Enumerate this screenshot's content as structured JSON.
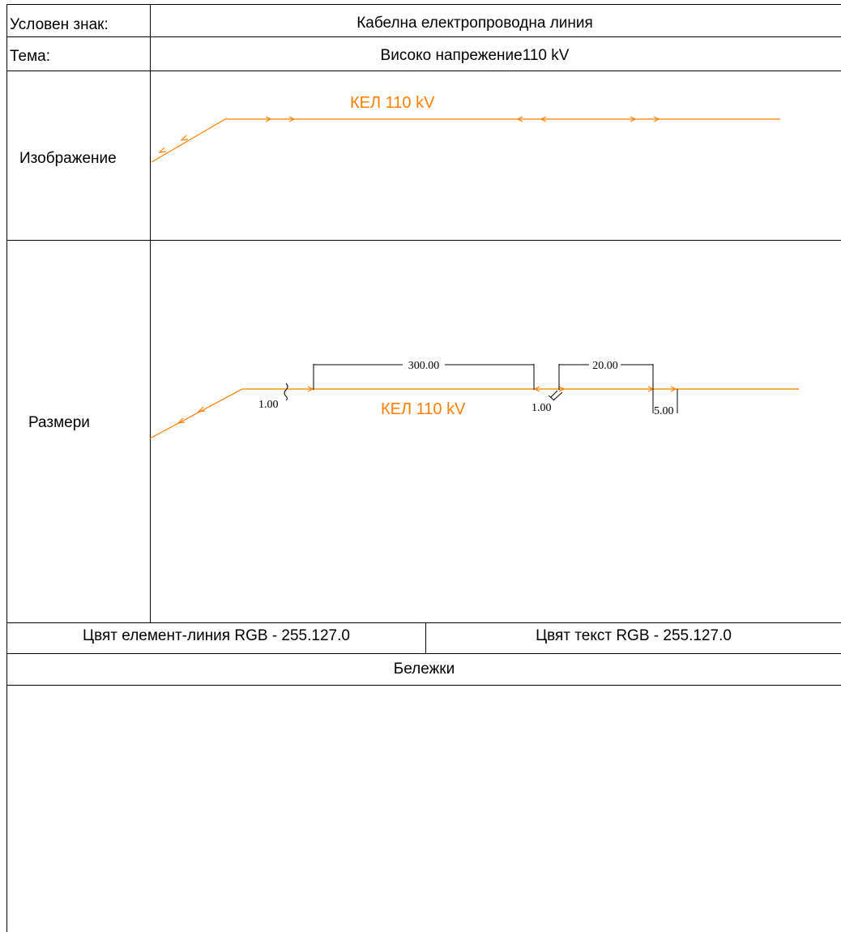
{
  "header": {
    "symbol_label": "Условен знак:",
    "symbol_value": "Кабелна електропроводна линия",
    "theme_label": "Тема:",
    "theme_value": "Високо напрежение110 kV"
  },
  "sections": {
    "image_label": "Изображение",
    "dimensions_label": "Размери",
    "line_color": "Цвят елемент-линия RGB - 255.127.0",
    "text_color": "Цвят текст RGB - 255.127.0",
    "notes_label": "Бележки"
  },
  "drawing": {
    "line_label": "КЕЛ 110 kV",
    "dimension_label": "КЕЛ 110 kV",
    "dims": {
      "length_main": "300.00",
      "length_gap": "20.00",
      "tick_left": "1.00",
      "tick_mid": "1.00",
      "offset": "5.00"
    }
  },
  "colors": {
    "line": "#ff7f00",
    "text": "#ff7f00",
    "frame": "#000000"
  }
}
